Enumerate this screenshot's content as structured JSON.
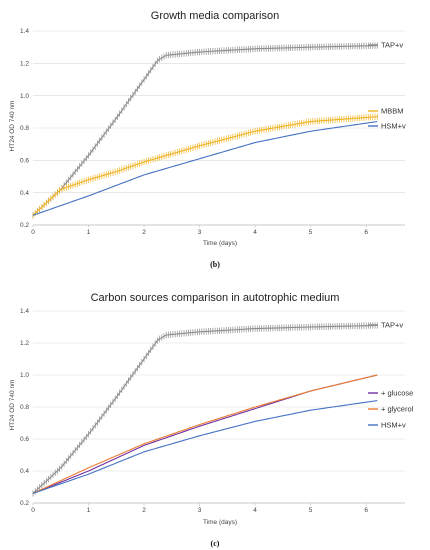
{
  "colors": {
    "tap": "#8c8c8c",
    "mbbm": "#f0b323",
    "hsm": "#4472c4",
    "glucose": "#7030a0",
    "glycerol": "#ed7d31"
  },
  "chart_data": [
    {
      "type": "line",
      "title": "Growth media comparison",
      "panel_label": "(b)",
      "xlabel": "Time (days)",
      "ylabel": "HT24 OD 740 nm",
      "xlim": [
        0,
        6.7
      ],
      "ylim": [
        0.2,
        1.4
      ],
      "x_ticks": [
        "0",
        "1",
        "2",
        "3",
        "4",
        "5",
        "6"
      ],
      "y_ticks": [
        "0.2",
        "0.4",
        "0.6",
        "0.8",
        "1.0",
        "1.2",
        "1.4"
      ],
      "grid": "horizontal",
      "legend": "right",
      "series": [
        {
          "name": "TAP+v",
          "color": "#8c8c8c",
          "errorbars": true,
          "points": [
            [
              0,
              0.26
            ],
            [
              0.5,
              0.42
            ],
            [
              1,
              0.63
            ],
            [
              1.5,
              0.86
            ],
            [
              2,
              1.1
            ],
            [
              2.25,
              1.22
            ],
            [
              2.4,
              1.25
            ],
            [
              3,
              1.27
            ],
            [
              4,
              1.29
            ],
            [
              5,
              1.3
            ],
            [
              6.2,
              1.31
            ]
          ]
        },
        {
          "name": "MBBM",
          "color": "#f0b323",
          "errorbars": true,
          "points": [
            [
              0,
              0.26
            ],
            [
              0.5,
              0.42
            ],
            [
              1,
              0.48
            ],
            [
              1.5,
              0.53
            ],
            [
              2,
              0.59
            ],
            [
              3,
              0.69
            ],
            [
              4,
              0.78
            ],
            [
              5,
              0.84
            ],
            [
              6.2,
              0.87
            ]
          ]
        },
        {
          "name": "HSM+v",
          "color": "#4472c4",
          "errorbars": false,
          "points": [
            [
              0,
              0.26
            ],
            [
              1,
              0.38
            ],
            [
              2,
              0.51
            ],
            [
              3,
              0.61
            ],
            [
              4,
              0.71
            ],
            [
              5,
              0.78
            ],
            [
              6.2,
              0.84
            ]
          ]
        }
      ]
    },
    {
      "type": "line",
      "title": "Carbon sources comparison in autotrophic medium",
      "panel_label": "(c)",
      "xlabel": "Time (days)",
      "ylabel": "HT24 OD 740 nm",
      "xlim": [
        0,
        6.7
      ],
      "ylim": [
        0.2,
        1.4
      ],
      "x_ticks": [
        "0",
        "1",
        "2",
        "3",
        "4",
        "5",
        "6"
      ],
      "y_ticks": [
        "0.2",
        "0.4",
        "0.6",
        "0.8",
        "1.0",
        "1.2",
        "1.4"
      ],
      "grid": "horizontal",
      "legend": "right",
      "series": [
        {
          "name": "TAP+v",
          "color": "#8c8c8c",
          "errorbars": true,
          "points": [
            [
              0,
              0.26
            ],
            [
              0.5,
              0.42
            ],
            [
              1,
              0.63
            ],
            [
              1.5,
              0.86
            ],
            [
              2,
              1.1
            ],
            [
              2.25,
              1.22
            ],
            [
              2.4,
              1.25
            ],
            [
              3,
              1.27
            ],
            [
              4,
              1.29
            ],
            [
              5,
              1.3
            ],
            [
              6.2,
              1.31
            ]
          ]
        },
        {
          "name": "+ glucose",
          "color": "#7030a0",
          "errorbars": false,
          "points": [
            [
              0,
              0.26
            ],
            [
              1,
              0.4
            ],
            [
              2,
              0.56
            ],
            [
              3,
              0.68
            ],
            [
              4,
              0.79
            ],
            [
              5,
              0.9
            ],
            [
              6.2,
              1.0
            ]
          ]
        },
        {
          "name": "+ glycerol",
          "color": "#ed7d31",
          "errorbars": false,
          "points": [
            [
              0,
              0.26
            ],
            [
              1,
              0.42
            ],
            [
              2,
              0.57
            ],
            [
              3,
              0.69
            ],
            [
              4,
              0.8
            ],
            [
              5,
              0.9
            ],
            [
              6.2,
              1.0
            ]
          ]
        },
        {
          "name": "HSM+v",
          "color": "#4472c4",
          "errorbars": false,
          "points": [
            [
              0,
              0.26
            ],
            [
              1,
              0.38
            ],
            [
              2,
              0.52
            ],
            [
              3,
              0.62
            ],
            [
              4,
              0.71
            ],
            [
              5,
              0.78
            ],
            [
              6.2,
              0.84
            ]
          ]
        }
      ]
    }
  ]
}
